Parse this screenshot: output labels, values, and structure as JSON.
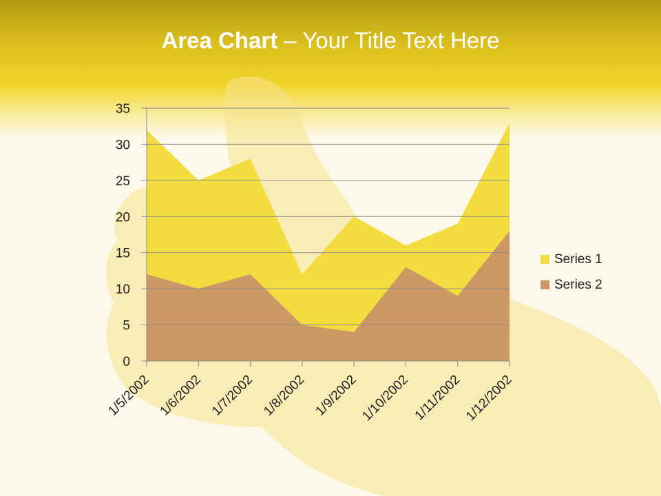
{
  "slide": {
    "title_bold": "Area Chart",
    "title_rest": " – Your Title Text Here"
  },
  "colors": {
    "header": "#d9bd1c",
    "series1": "#f3dc3f",
    "series2": "#cc9865",
    "gridline": "#8c8c8c",
    "axis_text": "#1f1f1f"
  },
  "chart_data": {
    "type": "area",
    "stacked": false,
    "categories": [
      "1/5/2002",
      "1/6/2002",
      "1/7/2002",
      "1/8/2002",
      "1/9/2002",
      "1/10/2002",
      "1/11/2002",
      "1/12/2002"
    ],
    "series": [
      {
        "name": "Series 1",
        "values": [
          32,
          25,
          28,
          12,
          20,
          16,
          19,
          33
        ]
      },
      {
        "name": "Series 2",
        "values": [
          12,
          10,
          12,
          5,
          4,
          13,
          9,
          18
        ]
      }
    ],
    "ylim": [
      0,
      35
    ],
    "yticks": [
      0,
      5,
      10,
      15,
      20,
      25,
      30,
      35
    ],
    "grid": true,
    "legend": "right"
  }
}
